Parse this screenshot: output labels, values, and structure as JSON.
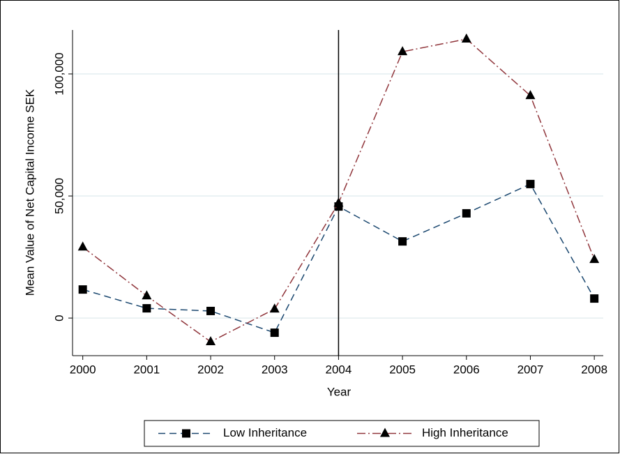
{
  "chart_data": {
    "type": "line",
    "x_label": "Year",
    "y_label": "Mean Value of Net Capital Income SEK",
    "x": [
      2000,
      2001,
      2002,
      2003,
      2004,
      2005,
      2006,
      2007,
      2008
    ],
    "series": [
      {
        "name": "Low Inheritance",
        "color": "#1a476f",
        "marker": "square",
        "dash": "10,6",
        "values": [
          11700,
          4000,
          2900,
          -6000,
          45700,
          31400,
          42900,
          54900,
          8000
        ]
      },
      {
        "name": "High Inheritance",
        "color": "#90353b",
        "marker": "triangle",
        "dash": "12,4,2,4",
        "values": [
          29100,
          9100,
          -9700,
          3700,
          47100,
          109100,
          114300,
          91100,
          24000
        ]
      }
    ],
    "xlim": [
      1999.84,
      2008.14
    ],
    "xticks": [
      2000,
      2001,
      2002,
      2003,
      2004,
      2005,
      2006,
      2007,
      2008
    ],
    "ylim": [
      -15400,
      118000
    ],
    "yticks": [
      0,
      {
        "value": 50000,
        "label": "50,000"
      },
      {
        "value": 100000,
        "label": "100,000"
      }
    ],
    "vline": 2004,
    "grid": true,
    "legend": "bottom"
  }
}
